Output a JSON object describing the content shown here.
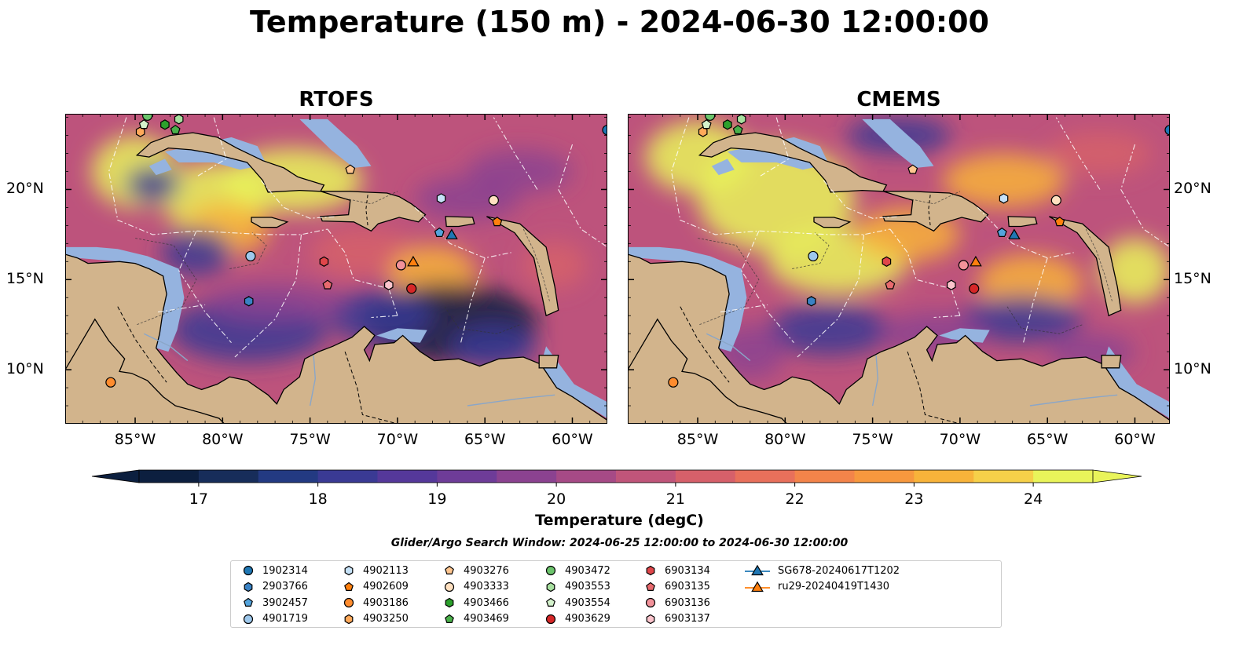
{
  "title": "Temperature (150 m) - 2024-06-30 12:00:00",
  "panels": [
    {
      "title": "RTOFS",
      "field": "rtofs"
    },
    {
      "title": "CMEMS",
      "field": "cmems"
    }
  ],
  "map_extent": {
    "lon": [
      -89,
      -58
    ],
    "lat": [
      7,
      24.2
    ]
  },
  "lon_ticks": [
    "85°W",
    "80°W",
    "75°W",
    "70°W",
    "65°W",
    "60°W"
  ],
  "lon_tick_values": [
    -85,
    -80,
    -75,
    -70,
    -65,
    -60
  ],
  "lat_ticks": [
    "20°N",
    "15°N",
    "10°N"
  ],
  "lat_tick_values": [
    20,
    15,
    10
  ],
  "colorbar": {
    "label": "Temperature (degC)",
    "min": 16.5,
    "max": 24.5,
    "step": 0.5,
    "tick_values": [
      17,
      18,
      19,
      20,
      21,
      22,
      23,
      24
    ],
    "tick_labels": [
      "17",
      "18",
      "19",
      "20",
      "21",
      "22",
      "23",
      "24"
    ],
    "colors": [
      "#0c1f3f",
      "#172d5a",
      "#233a82",
      "#3a3a94",
      "#55389a",
      "#6e3c98",
      "#8b4290",
      "#a64a86",
      "#c0557a",
      "#d6606a",
      "#e8705b",
      "#f3844a",
      "#f7983e",
      "#f8b33a",
      "#f6d049",
      "#e9f45a"
    ]
  },
  "search_window": "Glider/Argo Search Window: 2024-06-25 12:00:00 to 2024-06-30 12:00:00",
  "colors": {
    "land": "#d2b48c",
    "shallow": "#95b3df",
    "coast": "#000000"
  },
  "legend": [
    {
      "id": "1902314",
      "marker": "circle",
      "color": "#1f77b4",
      "lon": -58.0,
      "lat": 23.3
    },
    {
      "id": "2903766",
      "marker": "hexagon",
      "color": "#3a82c4",
      "lon": -78.5,
      "lat": 13.8
    },
    {
      "id": "3902457",
      "marker": "pentagon",
      "color": "#54a4dc",
      "lon": -67.6,
      "lat": 17.6
    },
    {
      "id": "4901719",
      "marker": "circle",
      "color": "#9ec8ec",
      "lon": -78.4,
      "lat": 16.3
    },
    {
      "id": "4902113",
      "marker": "hexagon",
      "color": "#c6e2f8",
      "lon": -67.5,
      "lat": 19.5
    },
    {
      "id": "4902609",
      "marker": "pentagon",
      "color": "#ff7f0e",
      "lon": -64.3,
      "lat": 18.2
    },
    {
      "id": "4903186",
      "marker": "circle",
      "color": "#ff8c2e",
      "lon": -86.4,
      "lat": 9.3
    },
    {
      "id": "4903250",
      "marker": "hexagon",
      "color": "#ffa95a",
      "lon": -84.7,
      "lat": 23.2
    },
    {
      "id": "4903276",
      "marker": "pentagon",
      "color": "#ffc690",
      "lon": -72.7,
      "lat": 21.1
    },
    {
      "id": "4903333",
      "marker": "circle",
      "color": "#ffe0c0",
      "lon": -64.5,
      "lat": 19.4
    },
    {
      "id": "4903466",
      "marker": "hexagon",
      "color": "#2ca02c",
      "lon": -83.3,
      "lat": 23.6
    },
    {
      "id": "4903469",
      "marker": "pentagon",
      "color": "#4ab04a",
      "lon": -82.7,
      "lat": 23.3
    },
    {
      "id": "4903472",
      "marker": "circle",
      "color": "#6cc46c",
      "lon": -84.3,
      "lat": 24.1
    },
    {
      "id": "4903553",
      "marker": "hexagon",
      "color": "#a8e0a0",
      "lon": -82.5,
      "lat": 23.9
    },
    {
      "id": "4903554",
      "marker": "pentagon",
      "color": "#d4f2cc",
      "lon": -84.5,
      "lat": 23.6
    },
    {
      "id": "4903629",
      "marker": "circle",
      "color": "#d62728",
      "lon": -69.2,
      "lat": 14.5
    },
    {
      "id": "6903134",
      "marker": "hexagon",
      "color": "#e0464a",
      "lon": -74.2,
      "lat": 16.0
    },
    {
      "id": "6903135",
      "marker": "pentagon",
      "color": "#e86a6e",
      "lon": -74.0,
      "lat": 14.7
    },
    {
      "id": "6903136",
      "marker": "circle",
      "color": "#f2929a",
      "lon": -69.8,
      "lat": 15.8
    },
    {
      "id": "6903137",
      "marker": "hexagon",
      "color": "#fbc4cc",
      "lon": -70.5,
      "lat": 14.7
    },
    {
      "id": "SG678-20240617T1202",
      "marker": "triangle-line",
      "color": "#1f77b4",
      "lon": -66.9,
      "lat": 17.5
    },
    {
      "id": "ru29-20240419T1430",
      "marker": "triangle-line",
      "color": "#ff7f0e",
      "lon": -69.1,
      "lat": 16.0
    }
  ]
}
